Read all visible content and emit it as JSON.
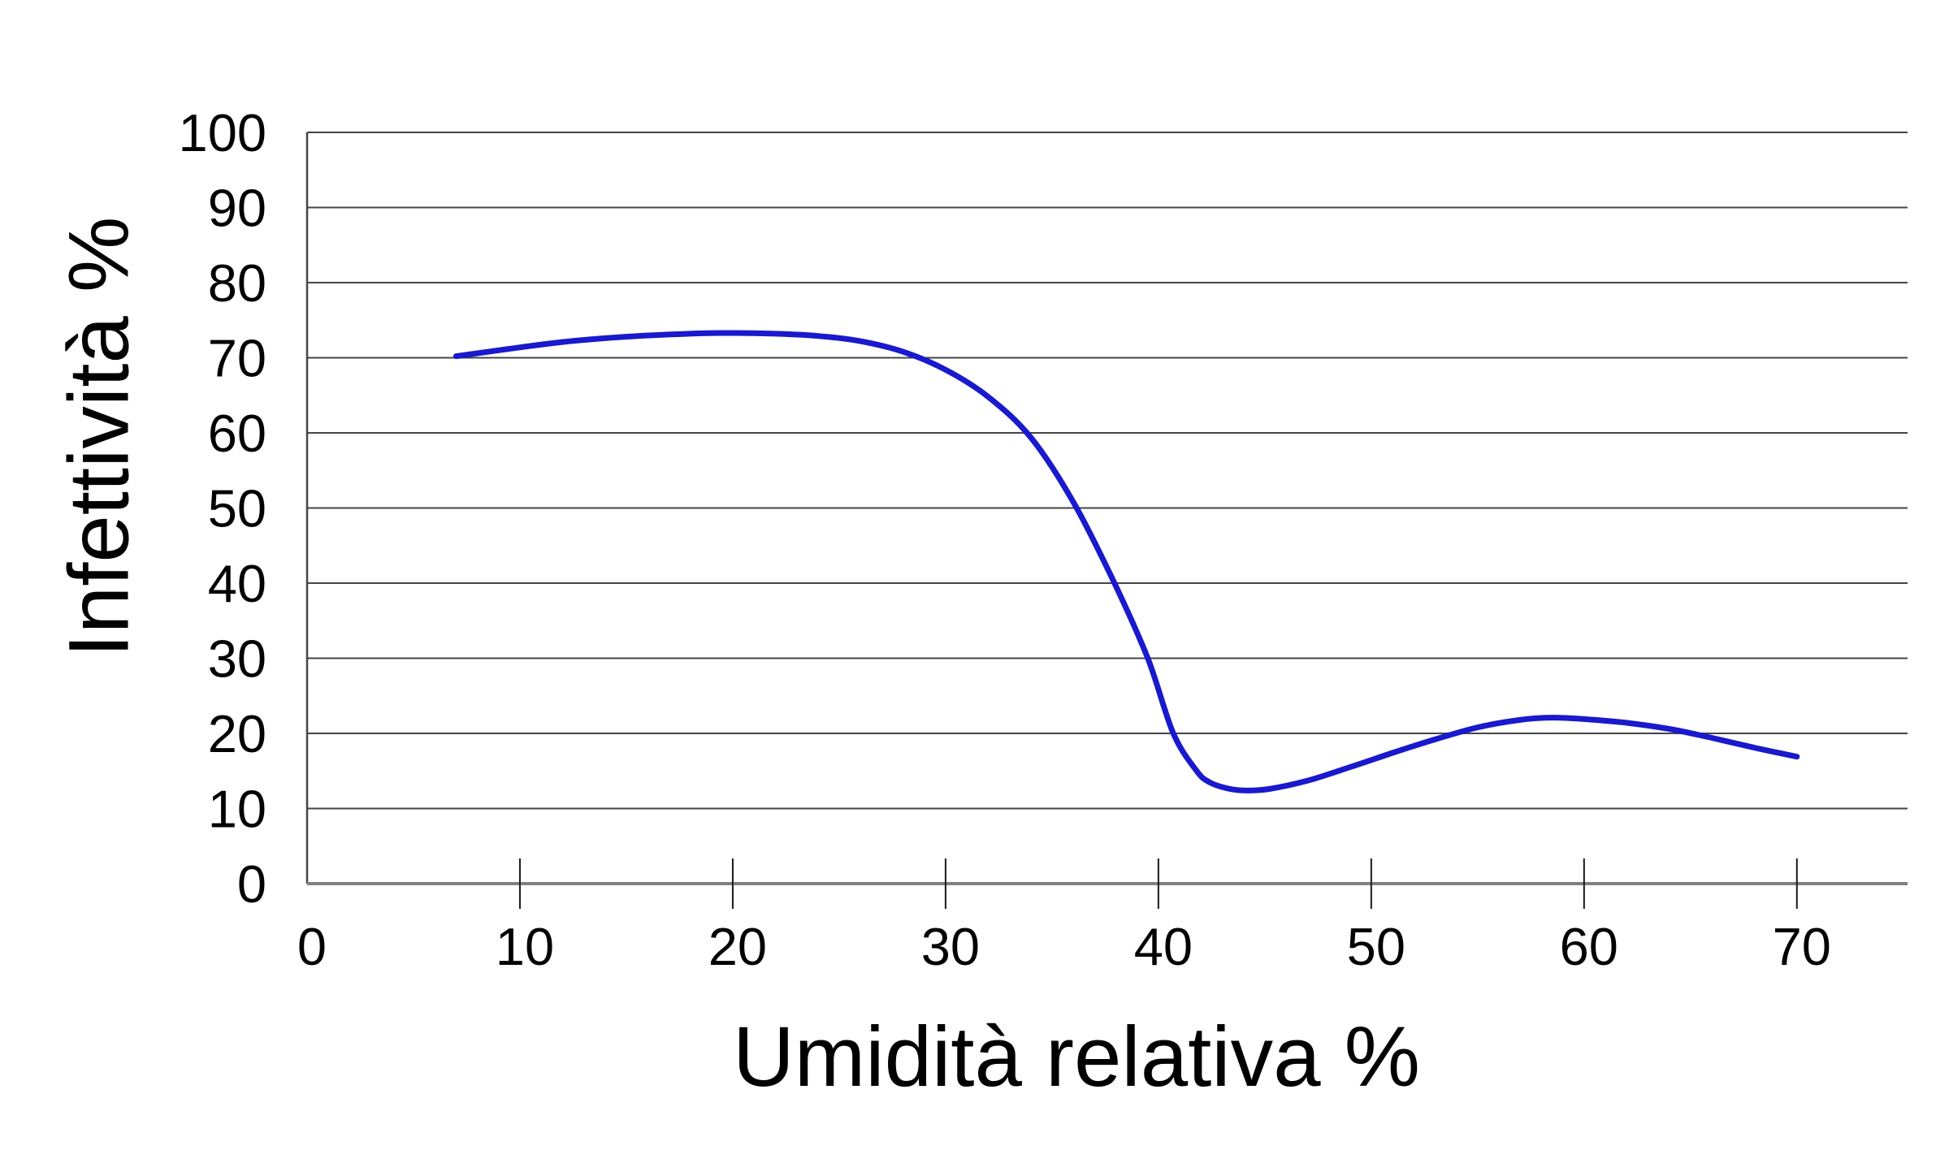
{
  "page": {
    "background": "#ffffff"
  },
  "chart_data": {
    "type": "line",
    "title": "",
    "xlabel": "Umidità relativa %",
    "ylabel": "Infettività %",
    "xlim": [
      0,
      75.2
    ],
    "ylim": [
      0,
      100
    ],
    "x_ticks": [
      0,
      10,
      20,
      30,
      40,
      50,
      60,
      70
    ],
    "y_ticks": [
      0,
      10,
      20,
      30,
      40,
      50,
      60,
      70,
      80,
      90,
      100
    ],
    "grid": "horizontal",
    "legend_position": "none",
    "colors": {
      "line": "#1919cd",
      "gridline": "#454545",
      "axis_line": "#808080",
      "tick_mark": "#1a1a1a",
      "text": "#000000",
      "background": "#ffffff"
    },
    "series": [
      {
        "name": "Infettività",
        "points": [
          [
            7,
            70.2
          ],
          [
            9,
            71.0
          ],
          [
            12,
            72.1
          ],
          [
            15,
            72.8
          ],
          [
            18,
            73.2
          ],
          [
            20,
            73.3
          ],
          [
            22,
            73.2
          ],
          [
            24,
            72.9
          ],
          [
            26,
            72.2
          ],
          [
            28,
            70.8
          ],
          [
            30,
            68.4
          ],
          [
            32,
            64.8
          ],
          [
            34,
            59.4
          ],
          [
            36,
            50.8
          ],
          [
            37.9,
            40.2
          ],
          [
            39.5,
            30.0
          ],
          [
            40.7,
            20.0
          ],
          [
            41.8,
            15.0
          ],
          [
            42.4,
            13.5
          ],
          [
            43.2,
            12.7
          ],
          [
            44,
            12.4
          ],
          [
            45.2,
            12.6
          ],
          [
            47,
            13.7
          ],
          [
            49,
            15.5
          ],
          [
            51,
            17.4
          ],
          [
            53,
            19.2
          ],
          [
            55,
            20.8
          ],
          [
            57,
            21.8
          ],
          [
            58.5,
            22.1
          ],
          [
            60,
            21.9
          ],
          [
            62,
            21.4
          ],
          [
            64,
            20.6
          ],
          [
            66,
            19.4
          ],
          [
            68,
            18.1
          ],
          [
            70,
            16.9
          ]
        ]
      }
    ]
  }
}
